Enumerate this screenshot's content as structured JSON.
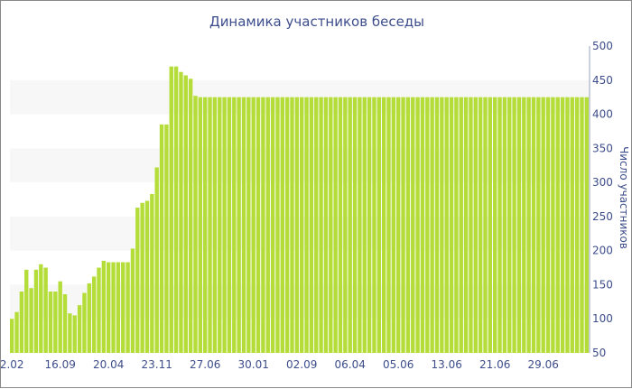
{
  "chart_data": {
    "type": "bar",
    "title": "Динамика участников беседы",
    "xlabel": "",
    "ylabel": "Число участников",
    "ylim": [
      50,
      500
    ],
    "yticks": [
      50,
      100,
      150,
      200,
      250,
      300,
      350,
      400,
      450,
      500
    ],
    "y_axis_side": "right",
    "grid": "alternating horizontal bands",
    "bar_color": "#b5dd3a",
    "band_color": "#f7f7f7",
    "text_color": "#3d4d8c",
    "x_tick_labels": [
      {
        "label": "2.02",
        "index": 0
      },
      {
        "label": "16.09",
        "index": 10
      },
      {
        "label": "20.04",
        "index": 20
      },
      {
        "label": "23.11",
        "index": 30
      },
      {
        "label": "27.06",
        "index": 40
      },
      {
        "label": "30.01",
        "index": 50
      },
      {
        "label": "02.09",
        "index": 60
      },
      {
        "label": "06.04",
        "index": 70
      },
      {
        "label": "05.06",
        "index": 80
      },
      {
        "label": "13.06",
        "index": 90
      },
      {
        "label": "21.06",
        "index": 100
      },
      {
        "label": "29.06",
        "index": 110
      }
    ],
    "values": [
      100,
      110,
      140,
      172,
      145,
      172,
      180,
      175,
      140,
      140,
      155,
      136,
      108,
      105,
      120,
      138,
      152,
      162,
      175,
      185,
      183,
      183,
      183,
      183,
      183,
      203,
      263,
      270,
      273,
      283,
      322,
      385,
      385,
      470,
      470,
      462,
      457,
      452,
      427,
      425,
      425,
      425,
      425,
      425,
      425,
      425,
      425,
      425,
      425,
      425,
      425,
      425,
      425,
      425,
      425,
      425,
      425,
      425,
      425,
      425,
      425,
      425,
      425,
      425,
      425,
      425,
      425,
      425,
      425,
      425,
      425,
      425,
      425,
      425,
      425,
      425,
      425,
      425,
      425,
      425,
      425,
      425,
      425,
      425,
      425,
      425,
      425,
      425,
      425,
      425,
      425,
      425,
      425,
      425,
      425,
      425,
      425,
      425,
      425,
      425,
      425,
      425,
      425,
      425,
      425,
      425,
      425,
      425,
      425,
      425,
      425,
      425,
      425,
      425,
      425,
      425,
      425,
      425,
      425,
      425
    ]
  }
}
